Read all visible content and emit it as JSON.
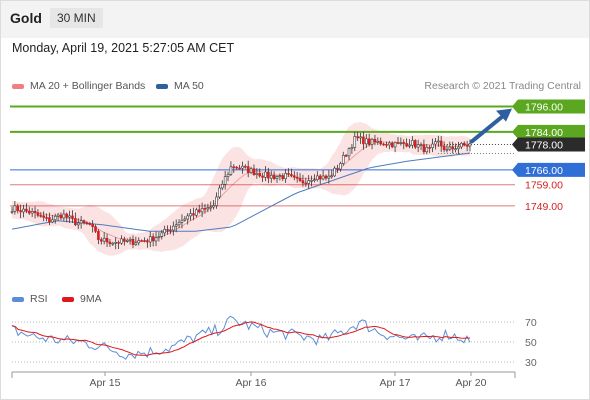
{
  "header": {
    "symbol": "Gold",
    "timeframe": "30 MIN"
  },
  "datetime": "Monday, April 19, 2021 5:27:05 AM CET",
  "legend": {
    "ma20": {
      "label": "MA 20 + Bollinger Bands",
      "color": "#f08080"
    },
    "ma50": {
      "label": "MA 50",
      "color": "#2f5f9e"
    },
    "rsi": {
      "label": "RSI",
      "color": "#5b8ed6"
    },
    "ma9": {
      "label": "9MA",
      "color": "#e01818"
    }
  },
  "credit": "Research © 2021 Trading Central",
  "chart_data": [
    {
      "type": "candlestick",
      "x_tick_labels": [
        "Apr 15",
        "Apr 16",
        "Apr 17",
        "Apr 20"
      ],
      "ylim": [
        1713,
        1800
      ],
      "levels": [
        {
          "value": 1796.0,
          "label": "1796.00",
          "kind": "target",
          "color": "#5ba820"
        },
        {
          "value": 1784.0,
          "label": "1784.00",
          "kind": "resistance",
          "color": "#5ba820"
        },
        {
          "value": 1778.0,
          "label": "1778.00",
          "kind": "last-price",
          "color": "#2b2b2b"
        },
        {
          "value": 1766.0,
          "label": "1766.00",
          "kind": "pivot",
          "color": "#2f6fd6"
        },
        {
          "value": 1759.0,
          "label": "1759.00",
          "kind": "support",
          "color": "#d21f1f"
        },
        {
          "value": 1749.0,
          "label": "1749.00",
          "kind": "support",
          "color": "#d21f1f"
        }
      ],
      "close_profile": [
        [
          0,
          1748
        ],
        [
          0.04,
          1746
        ],
        [
          0.08,
          1742
        ],
        [
          0.11,
          1745
        ],
        [
          0.14,
          1741
        ],
        [
          0.17,
          1740
        ],
        [
          0.19,
          1733
        ],
        [
          0.22,
          1732
        ],
        [
          0.26,
          1732
        ],
        [
          0.3,
          1733
        ],
        [
          0.33,
          1736
        ],
        [
          0.36,
          1741
        ],
        [
          0.39,
          1745
        ],
        [
          0.42,
          1747
        ],
        [
          0.44,
          1749
        ],
        [
          0.46,
          1760
        ],
        [
          0.48,
          1768
        ],
        [
          0.5,
          1767
        ],
        [
          0.53,
          1765
        ],
        [
          0.56,
          1763
        ],
        [
          0.6,
          1763
        ],
        [
          0.63,
          1760
        ],
        [
          0.66,
          1763
        ],
        [
          0.69,
          1762
        ],
        [
          0.71,
          1767
        ],
        [
          0.73,
          1774
        ],
        [
          0.75,
          1781
        ],
        [
          0.78,
          1779
        ],
        [
          0.81,
          1779
        ],
        [
          0.84,
          1778
        ],
        [
          0.87,
          1779
        ],
        [
          0.89,
          1777
        ],
        [
          0.91,
          1775
        ],
        [
          0.93,
          1779
        ],
        [
          0.95,
          1775
        ],
        [
          0.97,
          1777
        ],
        [
          1.0,
          1778
        ]
      ],
      "ma50_profile": [
        [
          0,
          1738
        ],
        [
          0.1,
          1742
        ],
        [
          0.2,
          1740
        ],
        [
          0.3,
          1737
        ],
        [
          0.4,
          1737
        ],
        [
          0.48,
          1739
        ],
        [
          0.55,
          1747
        ],
        [
          0.62,
          1755
        ],
        [
          0.7,
          1761
        ],
        [
          0.78,
          1767
        ],
        [
          0.86,
          1770
        ],
        [
          0.93,
          1772
        ],
        [
          1.0,
          1774
        ]
      ]
    },
    {
      "type": "line",
      "name": "RSI",
      "ylim": [
        20,
        80
      ],
      "y_tick_labels": [
        "70",
        "50",
        "30"
      ],
      "y_ticks": [
        70,
        50,
        30
      ],
      "rsi_profile": [
        [
          0,
          62
        ],
        [
          0.05,
          55
        ],
        [
          0.1,
          52
        ],
        [
          0.15,
          50
        ],
        [
          0.2,
          45
        ],
        [
          0.25,
          38
        ],
        [
          0.3,
          40
        ],
        [
          0.35,
          45
        ],
        [
          0.4,
          55
        ],
        [
          0.45,
          62
        ],
        [
          0.48,
          72
        ],
        [
          0.52,
          66
        ],
        [
          0.56,
          60
        ],
        [
          0.6,
          58
        ],
        [
          0.64,
          55
        ],
        [
          0.68,
          52
        ],
        [
          0.72,
          60
        ],
        [
          0.76,
          70
        ],
        [
          0.8,
          60
        ],
        [
          0.84,
          55
        ],
        [
          0.88,
          52
        ],
        [
          0.92,
          55
        ],
        [
          0.95,
          58
        ],
        [
          1.0,
          52
        ]
      ]
    }
  ]
}
